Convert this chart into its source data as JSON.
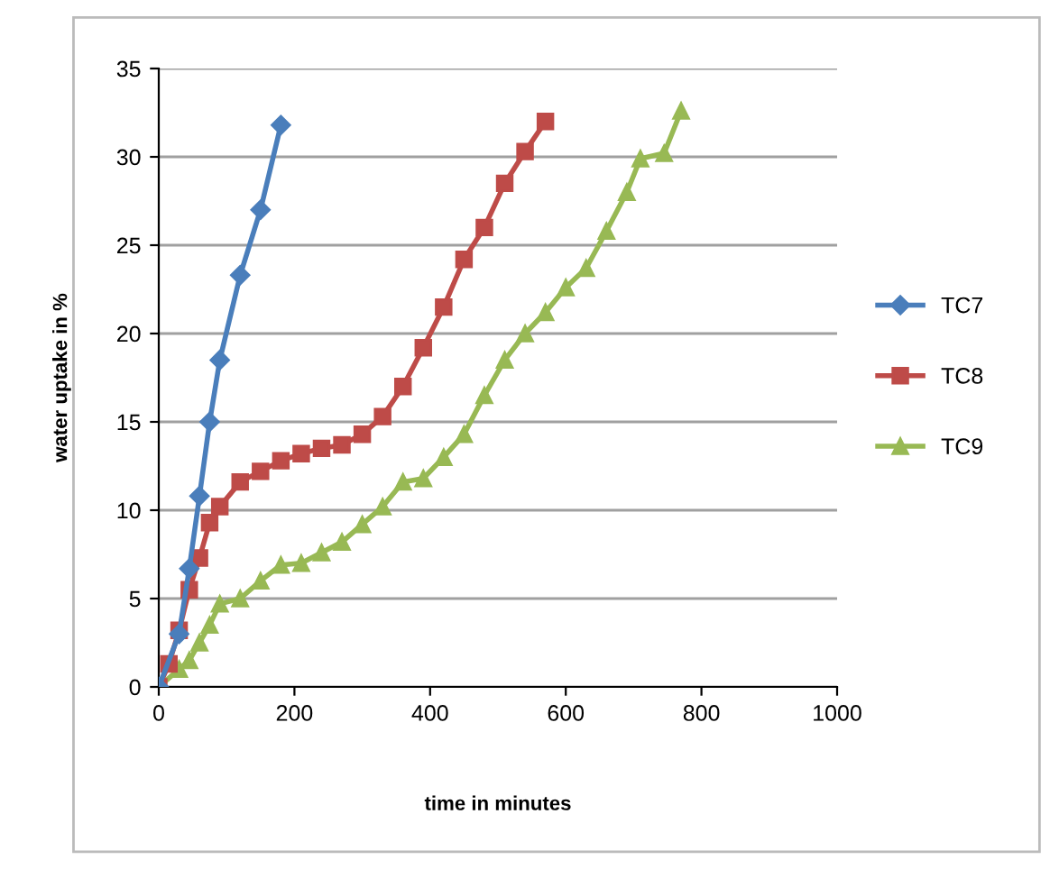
{
  "chart_data": {
    "type": "line",
    "xlabel": "time in minutes",
    "ylabel": "water uptake in %",
    "xlim": [
      0,
      1000
    ],
    "ylim": [
      0,
      35
    ],
    "xticks": [
      0,
      200,
      400,
      600,
      800,
      1000
    ],
    "yticks": [
      0,
      5,
      10,
      15,
      20,
      25,
      30,
      35
    ],
    "grid": "y",
    "legend": "right",
    "series": [
      {
        "name": "TC7",
        "color": "#4a7ebb",
        "marker": "diamond",
        "x": [
          0,
          30,
          45,
          60,
          75,
          90,
          120,
          150,
          180
        ],
        "values": [
          0,
          3,
          6.7,
          10.8,
          15,
          18.5,
          23.3,
          27,
          31.8
        ]
      },
      {
        "name": "TC8",
        "color": "#be4b48",
        "marker": "square",
        "x": [
          0,
          15,
          30,
          45,
          60,
          75,
          90,
          120,
          150,
          180,
          210,
          240,
          270,
          300,
          330,
          360,
          390,
          420,
          450,
          480,
          510,
          540,
          570
        ],
        "values": [
          0,
          1.3,
          3.2,
          5.5,
          7.3,
          9.3,
          10.2,
          11.6,
          12.2,
          12.8,
          13.2,
          13.5,
          13.7,
          14.3,
          15.3,
          17,
          19.2,
          21.5,
          24.2,
          26,
          28.5,
          30.3,
          32
        ]
      },
      {
        "name": "TC9",
        "color": "#98b954",
        "marker": "triangle",
        "x": [
          0,
          30,
          45,
          60,
          75,
          90,
          120,
          150,
          180,
          210,
          240,
          270,
          300,
          330,
          360,
          390,
          420,
          450,
          480,
          510,
          540,
          570,
          600,
          630,
          660,
          690,
          710,
          745,
          770
        ],
        "values": [
          0,
          1,
          1.5,
          2.5,
          3.5,
          4.7,
          5,
          6,
          6.9,
          7,
          7.6,
          8.2,
          9.2,
          10.2,
          11.6,
          11.8,
          13,
          14.3,
          16.5,
          18.5,
          20,
          21.2,
          22.6,
          23.7,
          25.8,
          28,
          29.9,
          30.2,
          32.6
        ]
      }
    ]
  }
}
